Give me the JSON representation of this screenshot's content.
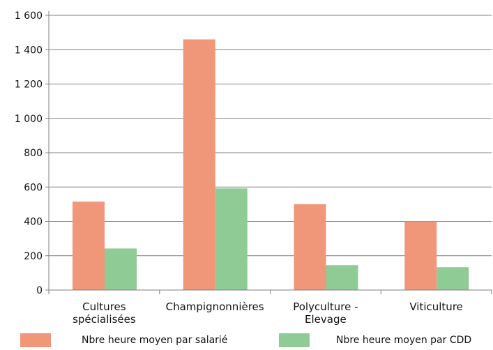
{
  "chart_data": {
    "type": "bar",
    "title": "",
    "xlabel": "",
    "ylabel": "",
    "ylim": [
      0,
      1600
    ],
    "yticks": [
      0,
      200,
      400,
      600,
      800,
      1000,
      1200,
      1400,
      1600
    ],
    "ytick_labels": [
      "0",
      "200",
      "400",
      "600",
      "800",
      "1 000",
      "1 200",
      "1 400",
      "1 600"
    ],
    "categories": [
      [
        "Cultures",
        "spécialisées"
      ],
      [
        "Champignonnières"
      ],
      [
        "Polyculture -",
        "Elevage"
      ],
      [
        "Viticulture"
      ]
    ],
    "series": [
      {
        "name": "Nbre heure moyen par salarié",
        "color": "#f0977a",
        "values": [
          515,
          1460,
          500,
          400
        ]
      },
      {
        "name": "Nbre heure moyen par CDD",
        "color": "#8fcb95",
        "values": [
          242,
          592,
          145,
          133
        ]
      }
    ],
    "grid": true,
    "legend_position": "bottom"
  }
}
